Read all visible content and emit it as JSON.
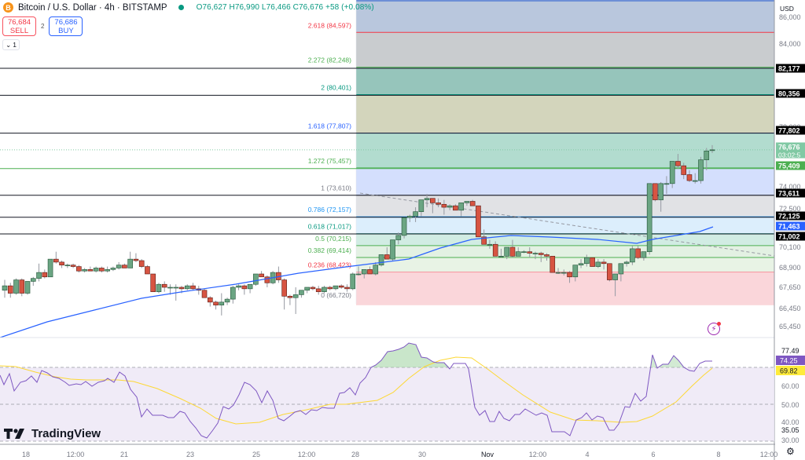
{
  "header": {
    "symbol_icon": "bitcoin-icon",
    "title": "Bitcoin / U.S. Dollar · 4h · BITSTAMP",
    "status": "market-open",
    "ohlc": "O76,627 H76,990 L76,466 C76,676 +58 (+0.08%)"
  },
  "trade": {
    "sell_price": "76,684",
    "sell_label": "SELL",
    "spread": "2",
    "buy_price": "76,686",
    "buy_label": "BUY"
  },
  "indicators_toggle": {
    "icon": "chevron-down-icon",
    "count": "1"
  },
  "branding": {
    "logo_text": "TradingView"
  },
  "axis": {
    "currency": "USD",
    "price_ticks": [
      "86,000",
      "84,000",
      "78,000",
      "74,000",
      "72,500",
      "70,100",
      "68,900",
      "67,650",
      "66,450",
      "65,450"
    ],
    "price_badges": [
      {
        "value": "82,177",
        "bg": "#000000",
        "fg": "#ffffff"
      },
      {
        "value": "80,356",
        "bg": "#000000",
        "fg": "#ffffff"
      },
      {
        "value": "77,802",
        "bg": "#000000",
        "fg": "#ffffff"
      },
      {
        "value": "76,676",
        "sub": "03:02:5",
        "bg": "#81c9a4",
        "fg": "#ffffff"
      },
      {
        "value": "75,409",
        "bg": "#4caf50",
        "fg": "#ffffff"
      },
      {
        "value": "73,611",
        "bg": "#000000",
        "fg": "#ffffff"
      },
      {
        "value": "72,125",
        "bg": "#000000",
        "fg": "#ffffff"
      },
      {
        "value": "71,463",
        "bg": "#2962ff",
        "fg": "#ffffff"
      },
      {
        "value": "71,002",
        "bg": "#000000",
        "fg": "#ffffff"
      }
    ],
    "rsi_ticks": [
      "77.49",
      "60.00",
      "50.00",
      "40.00",
      "35.05",
      "30.00"
    ],
    "rsi_badges": [
      {
        "value": "74.25",
        "bg": "#7e57c2",
        "fg": "#ffffff"
      },
      {
        "value": "69.82",
        "bg": "#ffeb3b",
        "fg": "#131722"
      }
    ],
    "time_ticks": [
      "18",
      "12:00",
      "21",
      "23",
      "25",
      "12:00",
      "28",
      "30",
      "Nov",
      "12:00",
      "4",
      "6",
      "8",
      "12:00"
    ]
  },
  "chart_data": [
    {
      "type": "candlestick",
      "title": "Bitcoin / U.S. Dollar · 4h · BITSTAMP",
      "ylabel": "USD",
      "ylim": [
        64900,
        86500
      ],
      "last_price": 76676,
      "fib_extension": {
        "levels": [
          {
            "ratio": "2.618",
            "price": 84597,
            "label": "2.618 (84,597)",
            "color": "#f23645",
            "fill": "#b9c7dd"
          },
          {
            "ratio": "2.272",
            "price": 82248,
            "label": "2.272 (82,248)",
            "color": "#4caf50",
            "fill": "#c9cccf"
          },
          {
            "ratio": "2",
            "price": 80401,
            "label": "2 (80,401)",
            "color": "#089981",
            "fill": "#96c5bb"
          },
          {
            "ratio": "1.618",
            "price": 77807,
            "label": "1.618 (77,807)",
            "color": "#2962ff",
            "fill": "#d3d5bc"
          },
          {
            "ratio": "1.272",
            "price": 75457,
            "label": "1.272 (75,457)",
            "color": "#4caf50",
            "fill": "#b2dccf"
          },
          {
            "ratio": "1",
            "price": 73610,
            "label": "1 (73,610)",
            "color": "#787b86",
            "fill": "#d4dffd"
          },
          {
            "ratio": "0.786",
            "price": 72157,
            "label": "0.786 (72,157)",
            "color": "#2196f3",
            "fill": "#e1e2e5"
          },
          {
            "ratio": "0.618",
            "price": 71017,
            "label": "0.618 (71,017)",
            "color": "#089981",
            "fill": "#dceefc"
          },
          {
            "ratio": "0.5",
            "price": 70215,
            "label": "0.5 (70,215)",
            "color": "#4caf50",
            "fill": "#d1ece3"
          },
          {
            "ratio": "0.382",
            "price": 69414,
            "label": "0.382 (69,414)",
            "color": "#4caf50",
            "fill": "#e3f1e3"
          },
          {
            "ratio": "0.236",
            "price": 68423,
            "label": "0.236 (68,423)",
            "color": "#f23645",
            "fill": "#e8f3e5"
          },
          {
            "ratio": "0",
            "price": 66720,
            "label": "0 (66,720)",
            "color": "#787b86",
            "fill": "#fad6da"
          }
        ]
      },
      "horizontal_lines": [
        82177,
        80356,
        77802,
        73611,
        72125,
        71002
      ],
      "moving_average": {
        "color": "#2962ff",
        "last": 71463
      },
      "trendline": {
        "style": "dashed",
        "from": [
          73611,
          "28"
        ],
        "to": [
          70300,
          "8+"
        ]
      },
      "candles_ohlc_approx": [
        [
          67200,
          67900,
          66700,
          67500
        ],
        [
          67500,
          67700,
          66700,
          67000
        ],
        [
          67000,
          68000,
          66900,
          67900
        ],
        [
          67900,
          68000,
          66800,
          67000
        ],
        [
          67000,
          67800,
          66900,
          67800
        ],
        [
          67800,
          68100,
          67500,
          68000
        ],
        [
          68000,
          69000,
          67800,
          68400
        ],
        [
          68400,
          68600,
          68000,
          68100
        ],
        [
          68100,
          69200,
          68100,
          69300
        ],
        [
          69300,
          69800,
          69000,
          69100
        ],
        [
          69100,
          69200,
          68700,
          68900
        ],
        [
          68900,
          69000,
          68700,
          68900
        ],
        [
          68900,
          69000,
          68700,
          68800
        ],
        [
          68800,
          68900,
          68400,
          68500
        ],
        [
          68500,
          68700,
          68400,
          68600
        ],
        [
          68600,
          68800,
          68500,
          68500
        ],
        [
          68500,
          68800,
          68400,
          68700
        ],
        [
          68700,
          68800,
          68400,
          68500
        ],
        [
          68500,
          68800,
          68400,
          68600
        ],
        [
          68600,
          68800,
          68500,
          68700
        ],
        [
          68700,
          69100,
          68600,
          68900
        ],
        [
          68900,
          69000,
          68700,
          68700
        ],
        [
          68700,
          69800,
          68700,
          69300
        ],
        [
          69300,
          69700,
          69100,
          69200
        ],
        [
          69200,
          69300,
          68700,
          68800
        ],
        [
          68800,
          68900,
          68300,
          68300
        ],
        [
          68300,
          68300,
          67100,
          67100
        ],
        [
          67100,
          67700,
          67000,
          67600
        ],
        [
          67600,
          67800,
          67100,
          67400
        ],
        [
          67400,
          67600,
          66900,
          67400
        ],
        [
          67400,
          67600,
          66500,
          67400
        ],
        [
          67400,
          67500,
          67000,
          67300
        ],
        [
          67300,
          67600,
          67200,
          67500
        ],
        [
          67500,
          67700,
          67200,
          67300
        ],
        [
          67300,
          67500,
          66900,
          67200
        ],
        [
          67200,
          67300,
          66700,
          66700
        ],
        [
          66700,
          66800,
          66100,
          66400
        ],
        [
          66400,
          66500,
          65900,
          66200
        ],
        [
          66200,
          67000,
          65500,
          66400
        ],
        [
          66400,
          66700,
          66200,
          66600
        ],
        [
          66600,
          67500,
          66300,
          67400
        ],
        [
          67400,
          67600,
          67200,
          67500
        ],
        [
          67500,
          67600,
          66900,
          67300
        ],
        [
          67300,
          67600,
          67000,
          67600
        ],
        [
          67600,
          68300,
          67500,
          68300
        ],
        [
          68300,
          68500,
          68100,
          68100
        ],
        [
          68100,
          68200,
          67400,
          67700
        ],
        [
          67700,
          68500,
          67600,
          68400
        ],
        [
          68400,
          68800,
          67700,
          67900
        ],
        [
          67900,
          68000,
          65900,
          66800
        ],
        [
          66800,
          66900,
          66200,
          66700
        ],
        [
          66700,
          67400,
          65600,
          66900
        ],
        [
          66900,
          67200,
          66700,
          67200
        ],
        [
          67200,
          67400,
          67000,
          67400
        ],
        [
          67400,
          67500,
          67200,
          67300
        ],
        [
          67300,
          67500,
          66900,
          67100
        ],
        [
          67100,
          67500,
          67000,
          67400
        ],
        [
          67400,
          67500,
          67200,
          67300
        ],
        [
          67300,
          67500,
          67200,
          67500
        ],
        [
          67500,
          67600,
          67300,
          67400
        ],
        [
          67400,
          67600,
          67100,
          67300
        ],
        [
          67300,
          68400,
          67200,
          68300
        ],
        [
          68300,
          68800,
          68200,
          68300
        ],
        [
          68300,
          68600,
          68000,
          68600
        ],
        [
          68600,
          68800,
          68400,
          68300
        ],
        [
          68300,
          69100,
          68200,
          68900
        ],
        [
          68900,
          69600,
          68800,
          69600
        ],
        [
          69600,
          70100,
          69300,
          69300
        ],
        [
          69300,
          70600,
          69200,
          70600
        ],
        [
          70600,
          71100,
          70300,
          70900
        ],
        [
          70900,
          72100,
          70700,
          72100
        ],
        [
          72100,
          72300,
          71800,
          72200
        ],
        [
          72200,
          72800,
          71800,
          72500
        ],
        [
          72500,
          73300,
          72200,
          73300
        ],
        [
          73300,
          73700,
          72800,
          73400
        ],
        [
          73400,
          73400,
          72400,
          73100
        ],
        [
          73100,
          73400,
          72800,
          73000
        ],
        [
          73000,
          73300,
          72300,
          72800
        ],
        [
          72800,
          73000,
          72600,
          72900
        ],
        [
          72900,
          73000,
          72600,
          72600
        ],
        [
          72600,
          72800,
          72200,
          73100
        ],
        [
          73100,
          73200,
          72900,
          73200
        ],
        [
          73200,
          73300,
          73000,
          72900
        ],
        [
          72900,
          72900,
          70800,
          70800
        ],
        [
          70800,
          71300,
          70600,
          70300
        ],
        [
          70300,
          70600,
          70000,
          70300
        ],
        [
          70300,
          70500,
          69600,
          69500
        ],
        [
          69500,
          70000,
          69400,
          69500
        ],
        [
          69500,
          70100,
          69300,
          70100
        ],
        [
          70100,
          70600,
          69400,
          69500
        ],
        [
          69500,
          70100,
          69500,
          69800
        ],
        [
          69800,
          69900,
          69700,
          69800
        ],
        [
          69800,
          70100,
          69400,
          69700
        ],
        [
          69700,
          69800,
          69300,
          69700
        ],
        [
          69700,
          69800,
          69100,
          69600
        ],
        [
          69600,
          69700,
          69200,
          69500
        ],
        [
          69500,
          69500,
          68400,
          68400
        ],
        [
          68400,
          68700,
          68300,
          68400
        ],
        [
          68400,
          68600,
          68200,
          68400
        ],
        [
          68400,
          68500,
          67700,
          68100
        ],
        [
          68100,
          68900,
          67800,
          68900
        ],
        [
          68900,
          69300,
          68700,
          69000
        ],
        [
          69000,
          69600,
          68800,
          69400
        ],
        [
          69400,
          69400,
          68800,
          68800
        ],
        [
          68800,
          69300,
          68700,
          69100
        ],
        [
          69100,
          69300,
          68600,
          69000
        ],
        [
          69000,
          69000,
          67800,
          67900
        ],
        [
          67900,
          68300,
          66800,
          68300
        ],
        [
          68300,
          69000,
          67800,
          69000
        ],
        [
          69000,
          69200,
          68800,
          69100
        ],
        [
          69100,
          70200,
          68900,
          70000
        ],
        [
          70000,
          70200,
          69300,
          69400
        ],
        [
          69400,
          69800,
          69200,
          69800
        ],
        [
          69800,
          74400,
          69600,
          74400
        ],
        [
          74400,
          74400,
          73200,
          73300
        ],
        [
          73300,
          74500,
          72500,
          74400
        ],
        [
          74400,
          74900,
          73700,
          74400
        ],
        [
          74400,
          75500,
          74100,
          75900
        ],
        [
          75900,
          76400,
          75400,
          75600
        ],
        [
          75600,
          75800,
          74700,
          75000
        ],
        [
          75000,
          75300,
          74500,
          74600
        ],
        [
          74600,
          75100,
          74400,
          74600
        ],
        [
          74600,
          76200,
          74400,
          76000
        ],
        [
          76000,
          76800,
          75300,
          76600
        ],
        [
          76627,
          76990,
          76466,
          76676
        ]
      ]
    },
    {
      "type": "line",
      "title": "RSI",
      "ylim": [
        30,
        80
      ],
      "bands": {
        "upper": 70,
        "middle": 50,
        "lower": 30
      },
      "series": [
        {
          "name": "RSI",
          "color": "#7e57c2",
          "last": 74.25
        },
        {
          "name": "RSI-based MA",
          "color": "#ffeb3b",
          "last": 69.82
        }
      ],
      "max_visible": 77.49,
      "min_visible": 35.05
    }
  ]
}
